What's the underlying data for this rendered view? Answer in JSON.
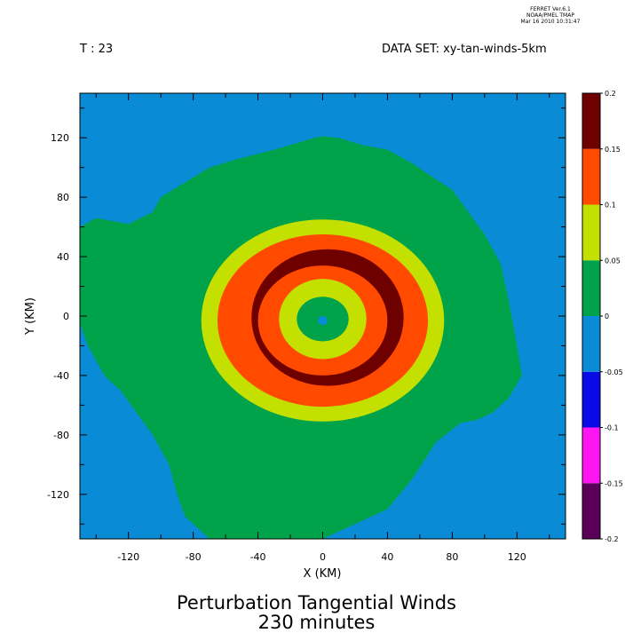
{
  "header": {
    "ferret_lines": [
      "FERRET  Ver.6.1",
      "NOAA/PMEL TMAP",
      "Mar 16 2010 10:31:47"
    ],
    "time": "T : 23",
    "dataset": "DATA SET: xy-tan-winds-5km"
  },
  "chart_data": {
    "type": "heatmap",
    "title": "Perturbation Tangential Winds",
    "subtitle": "230 minutes",
    "xlabel": "X (KM)",
    "ylabel": "Y (KM)",
    "xlim": [
      -150,
      150
    ],
    "ylim": [
      -150,
      150
    ],
    "x_ticks": [
      -120,
      -80,
      -40,
      0,
      40,
      80,
      120
    ],
    "y_ticks": [
      -120,
      -80,
      -40,
      0,
      40,
      80,
      120
    ],
    "colorbar": {
      "levels": [
        -0.2,
        -0.15,
        -0.1,
        -0.05,
        0,
        0.05,
        0.1,
        0.15,
        0.2
      ],
      "tick_labels": [
        "-0.2",
        "-0.15",
        "-0.1",
        "-0.05",
        "0",
        "0.05",
        "0.1",
        "0.15",
        "0.2"
      ],
      "colors": [
        "#5a0057",
        "#ff14f2",
        "#0a0ae6",
        "#0a8bd6",
        "#00a34a",
        "#c4e000",
        "#ff4a00",
        "#6e0000"
      ]
    },
    "green_region_outline": [
      [
        -150,
        60
      ],
      [
        -140,
        66
      ],
      [
        -120,
        62
      ],
      [
        -105,
        70
      ],
      [
        -100,
        80
      ],
      [
        -88,
        88
      ],
      [
        -70,
        100
      ],
      [
        -55,
        105
      ],
      [
        -30,
        112
      ],
      [
        -5,
        120
      ],
      [
        0,
        121
      ],
      [
        10,
        120
      ],
      [
        25,
        115
      ],
      [
        40,
        112
      ],
      [
        55,
        103
      ],
      [
        70,
        92
      ],
      [
        80,
        85
      ],
      [
        90,
        70
      ],
      [
        100,
        55
      ],
      [
        110,
        35
      ],
      [
        115,
        10
      ],
      [
        120,
        -20
      ],
      [
        123,
        -40
      ],
      [
        115,
        -55
      ],
      [
        105,
        -65
      ],
      [
        95,
        -70
      ],
      [
        85,
        -72
      ],
      [
        70,
        -85
      ],
      [
        55,
        -110
      ],
      [
        40,
        -130
      ],
      [
        20,
        -140
      ],
      [
        0,
        -150
      ],
      [
        -70,
        -150
      ],
      [
        -75,
        -145
      ],
      [
        -85,
        -135
      ],
      [
        -90,
        -120
      ],
      [
        -95,
        -100
      ],
      [
        -105,
        -80
      ],
      [
        -115,
        -65
      ],
      [
        -125,
        -50
      ],
      [
        -135,
        -40
      ],
      [
        -145,
        -20
      ],
      [
        -150,
        -5
      ]
    ],
    "rings": [
      {
        "level": "0.05 to 0.1",
        "outer_radius_x": 75,
        "outer_radius_y": 68,
        "center": [
          0,
          -3
        ]
      },
      {
        "level": "0.1 to 0.15",
        "outer_radius_x": 65,
        "outer_radius_y": 58,
        "center": [
          0,
          -3
        ]
      },
      {
        "level": "0.15 to 0.2",
        "outer_radius_x": 47,
        "outer_radius_y": 46,
        "center": [
          3,
          -1
        ]
      },
      {
        "level": "0.1 to 0.15",
        "outer_radius_x": 40,
        "outer_radius_y": 37,
        "center": [
          0,
          -3
        ]
      },
      {
        "level": "0.05 to 0.1",
        "outer_radius_x": 27,
        "outer_radius_y": 27,
        "center": [
          0,
          -2
        ]
      },
      {
        "level": "0 to 0.05",
        "outer_radius_x": 16,
        "outer_radius_y": 15,
        "center": [
          0,
          -2
        ]
      },
      {
        "level": "-0.05 to 0",
        "outer_radius_x": 3,
        "outer_radius_y": 3,
        "center": [
          0,
          -3
        ]
      }
    ]
  }
}
